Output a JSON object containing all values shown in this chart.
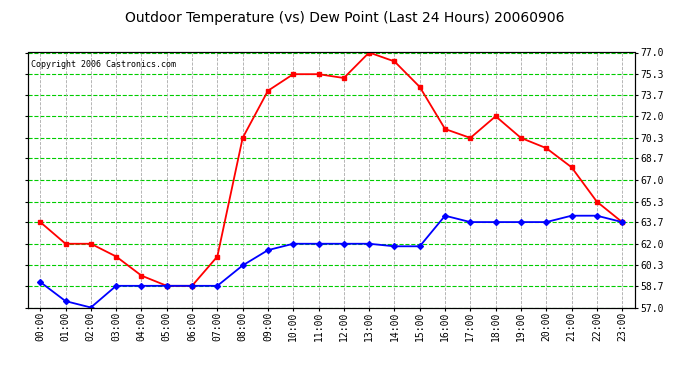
{
  "title": "Outdoor Temperature (vs) Dew Point (Last 24 Hours) 20060906",
  "copyright": "Copyright 2006 Castronics.com",
  "x_labels": [
    "00:00",
    "01:00",
    "02:00",
    "03:00",
    "04:00",
    "05:00",
    "06:00",
    "07:00",
    "08:00",
    "09:00",
    "10:00",
    "11:00",
    "12:00",
    "13:00",
    "14:00",
    "15:00",
    "16:00",
    "17:00",
    "18:00",
    "19:00",
    "20:00",
    "21:00",
    "22:00",
    "23:00"
  ],
  "ylim": [
    57.0,
    77.0
  ],
  "yticks": [
    57.0,
    58.7,
    60.3,
    62.0,
    63.7,
    65.3,
    67.0,
    68.7,
    70.3,
    72.0,
    73.7,
    75.3,
    77.0
  ],
  "temp_color": "#ff0000",
  "dew_color": "#0000ff",
  "grid_color": "#00cc00",
  "vgrid_color": "#aaaaaa",
  "bg_color": "#ffffff",
  "temp_values": [
    63.7,
    62.0,
    62.0,
    61.0,
    59.5,
    58.7,
    58.7,
    61.0,
    70.3,
    74.0,
    75.3,
    75.3,
    75.0,
    77.0,
    76.3,
    74.3,
    71.0,
    70.3,
    72.0,
    70.3,
    69.5,
    68.0,
    65.3,
    63.7
  ],
  "dew_values": [
    59.0,
    57.5,
    57.0,
    58.7,
    58.7,
    58.7,
    58.7,
    58.7,
    60.3,
    61.5,
    62.0,
    62.0,
    62.0,
    62.0,
    61.8,
    61.8,
    64.2,
    63.7,
    63.7,
    63.7,
    63.7,
    64.2,
    64.2,
    63.7
  ],
  "title_fontsize": 10,
  "tick_fontsize": 7,
  "copyright_fontsize": 6
}
